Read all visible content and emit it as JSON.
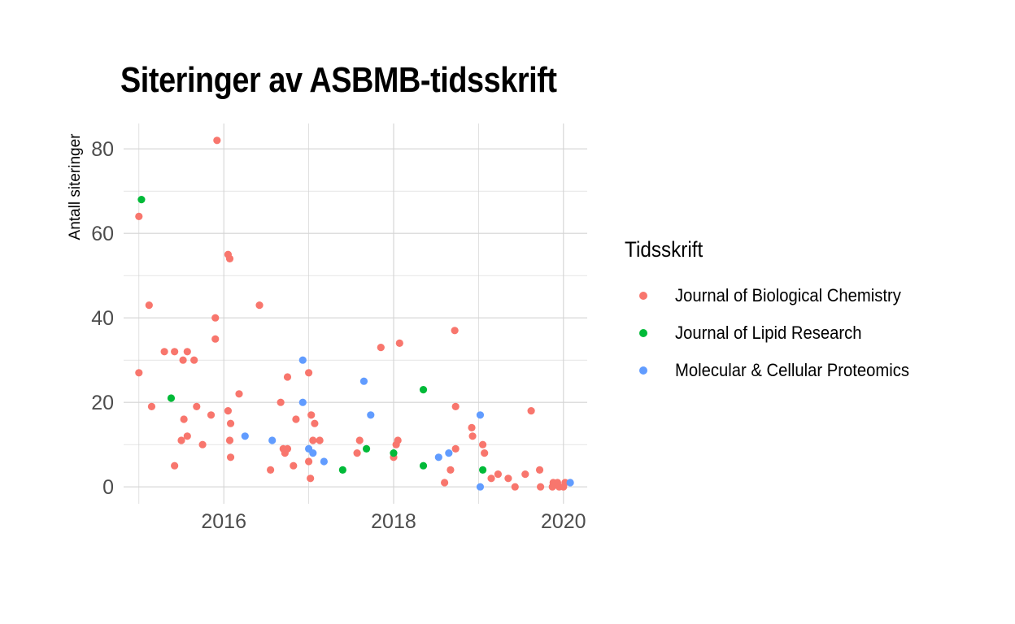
{
  "chart_data": {
    "type": "scatter",
    "title": "Siteringer av ASBMB-tidsskrift",
    "xlabel": "",
    "ylabel": "Antall siteringer",
    "xlim": [
      2014.82,
      2020.28
    ],
    "ylim": [
      -4,
      86
    ],
    "x_ticks": [
      2016,
      2018,
      2020
    ],
    "y_ticks": [
      0,
      20,
      40,
      60,
      80
    ],
    "grid": true,
    "legend": {
      "title": "Tidsskrift",
      "position": "right"
    },
    "series": [
      {
        "name": "Journal of Biological Chemistry",
        "color": "#F8766D",
        "points": [
          [
            2015.0,
            64
          ],
          [
            2015.0,
            27
          ],
          [
            2015.12,
            43
          ],
          [
            2015.15,
            19
          ],
          [
            2015.3,
            32
          ],
          [
            2015.42,
            32
          ],
          [
            2015.42,
            5
          ],
          [
            2015.5,
            11
          ],
          [
            2015.52,
            30
          ],
          [
            2015.53,
            16
          ],
          [
            2015.57,
            32
          ],
          [
            2015.57,
            12
          ],
          [
            2015.65,
            30
          ],
          [
            2015.68,
            19
          ],
          [
            2015.75,
            10
          ],
          [
            2015.85,
            17
          ],
          [
            2015.9,
            35
          ],
          [
            2015.9,
            40
          ],
          [
            2015.92,
            82
          ],
          [
            2016.05,
            55
          ],
          [
            2016.05,
            18
          ],
          [
            2016.07,
            54
          ],
          [
            2016.07,
            11
          ],
          [
            2016.08,
            7
          ],
          [
            2016.08,
            15
          ],
          [
            2016.18,
            22
          ],
          [
            2016.42,
            43
          ],
          [
            2016.55,
            4
          ],
          [
            2016.67,
            20
          ],
          [
            2016.7,
            9
          ],
          [
            2016.72,
            8
          ],
          [
            2016.75,
            26
          ],
          [
            2016.75,
            9
          ],
          [
            2016.82,
            5
          ],
          [
            2016.85,
            16
          ],
          [
            2017.0,
            27
          ],
          [
            2017.0,
            6
          ],
          [
            2017.02,
            2
          ],
          [
            2017.03,
            17
          ],
          [
            2017.05,
            11
          ],
          [
            2017.07,
            15
          ],
          [
            2017.13,
            11
          ],
          [
            2017.57,
            8
          ],
          [
            2017.6,
            11
          ],
          [
            2017.85,
            33
          ],
          [
            2018.0,
            7
          ],
          [
            2018.03,
            10
          ],
          [
            2018.05,
            11
          ],
          [
            2018.07,
            34
          ],
          [
            2018.6,
            1
          ],
          [
            2018.67,
            4
          ],
          [
            2018.72,
            37
          ],
          [
            2018.73,
            19
          ],
          [
            2018.73,
            9
          ],
          [
            2018.92,
            14
          ],
          [
            2018.93,
            12
          ],
          [
            2019.05,
            10
          ],
          [
            2019.07,
            8
          ],
          [
            2019.15,
            2
          ],
          [
            2019.23,
            3
          ],
          [
            2019.35,
            2
          ],
          [
            2019.43,
            0
          ],
          [
            2019.55,
            3
          ],
          [
            2019.62,
            18
          ],
          [
            2019.72,
            4
          ],
          [
            2019.73,
            0
          ],
          [
            2019.87,
            0
          ],
          [
            2019.88,
            1
          ],
          [
            2019.93,
            1
          ],
          [
            2019.95,
            0
          ],
          [
            2020.0,
            0
          ],
          [
            2020.02,
            1
          ]
        ]
      },
      {
        "name": "Journal of Lipid Research",
        "color": "#00BA38",
        "points": [
          [
            2015.03,
            68
          ],
          [
            2015.38,
            21
          ],
          [
            2017.4,
            4
          ],
          [
            2017.68,
            9
          ],
          [
            2018.0,
            8
          ],
          [
            2018.35,
            23
          ],
          [
            2018.35,
            5
          ],
          [
            2019.05,
            4
          ]
        ]
      },
      {
        "name": "Molecular & Cellular Proteomics",
        "color": "#619CFF",
        "points": [
          [
            2016.25,
            12
          ],
          [
            2016.57,
            11
          ],
          [
            2016.93,
            30
          ],
          [
            2016.93,
            20
          ],
          [
            2017.0,
            9
          ],
          [
            2017.05,
            8
          ],
          [
            2017.18,
            6
          ],
          [
            2017.65,
            25
          ],
          [
            2017.73,
            17
          ],
          [
            2018.53,
            7
          ],
          [
            2018.65,
            8
          ],
          [
            2019.02,
            17
          ],
          [
            2019.02,
            0
          ],
          [
            2020.08,
            1
          ]
        ]
      }
    ]
  }
}
